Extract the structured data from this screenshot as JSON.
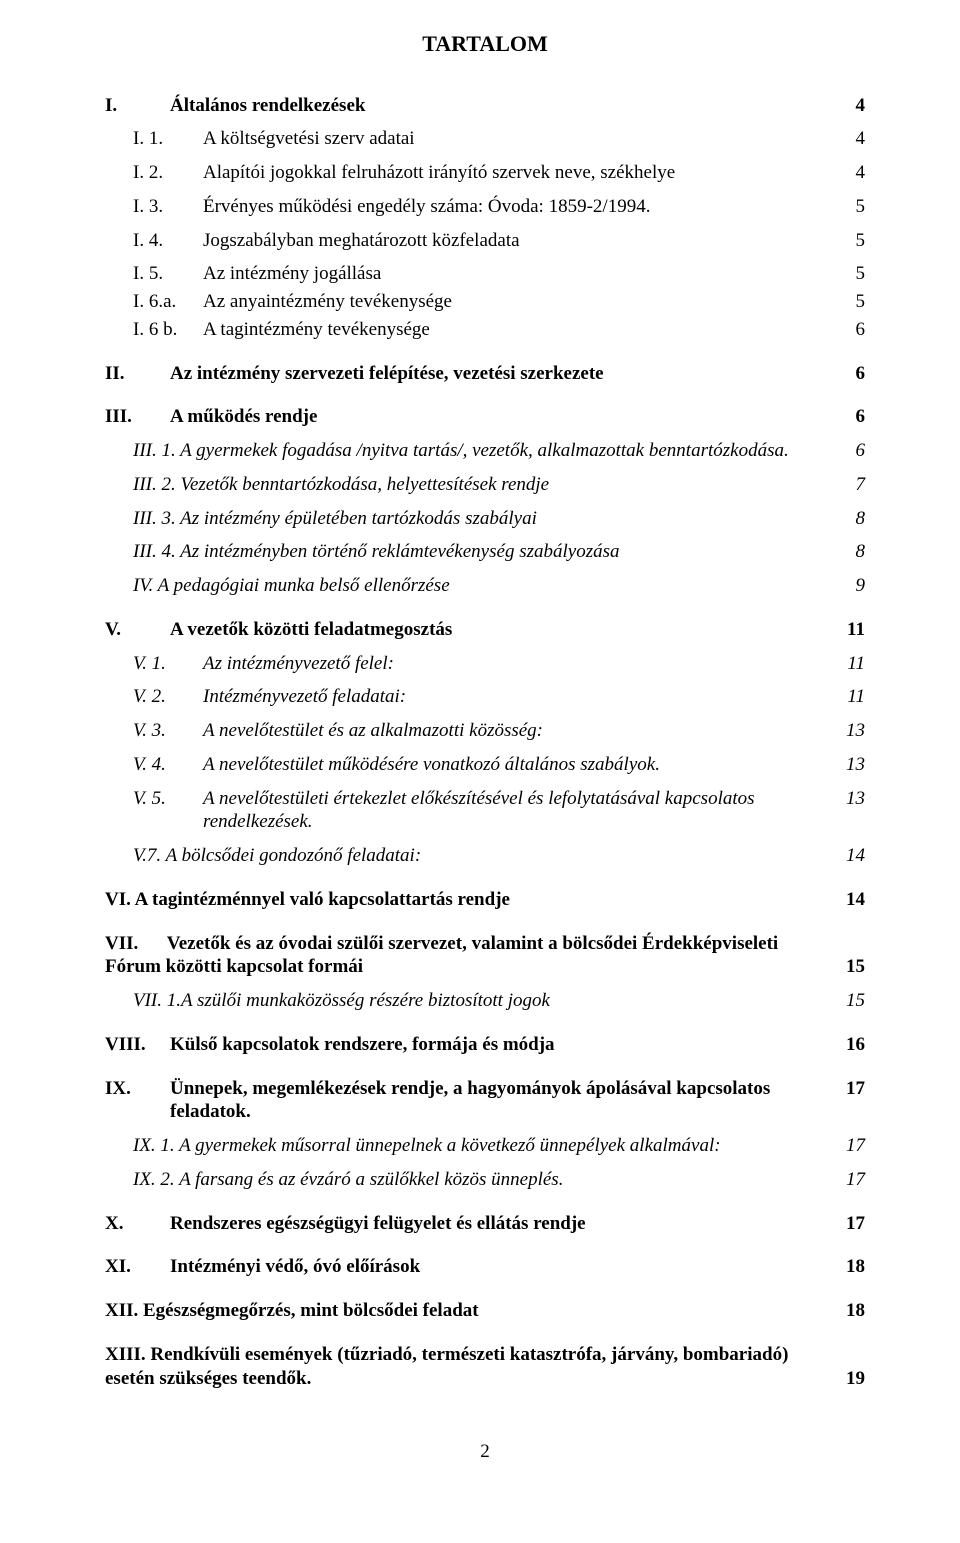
{
  "title": "TARTALOM",
  "page_number": "2",
  "toc": [
    {
      "num": "I.",
      "label": "Általános rendelkezések",
      "page": "4",
      "bold": true,
      "italic": false,
      "indent": 0,
      "gap": "lg"
    },
    {
      "num": "I. 1.",
      "label": "A költségvetési szerv adatai",
      "page": "4",
      "bold": false,
      "italic": false,
      "indent": 1,
      "gap": "sm"
    },
    {
      "num": "I. 2.",
      "label": "Alapítói jogokkal felruházott irányító szervek neve, székhelye",
      "page": "4",
      "bold": false,
      "italic": false,
      "indent": 1,
      "gap": "sm"
    },
    {
      "num": "I. 3.",
      "label": "Érvényes működési engedély száma:  Óvoda: 1859-2/1994.",
      "page": "5",
      "bold": false,
      "italic": false,
      "indent": 1,
      "gap": "sm"
    },
    {
      "num": "I. 4.",
      "label": "Jogszabályban meghatározott közfeladata",
      "page": "5",
      "bold": false,
      "italic": false,
      "indent": 1,
      "gap": "sm"
    },
    {
      "num": "I. 5.",
      "label": "Az intézmény jogállása",
      "page": "5",
      "bold": false,
      "italic": false,
      "indent": 1,
      "gap": "sm"
    },
    {
      "num": "I. 6.a.",
      "label": "Az anyaintézmény tevékenysége",
      "page": "5",
      "bold": false,
      "italic": false,
      "indent": 1,
      "gap": ""
    },
    {
      "num": "I. 6 b.",
      "label": "A tagintézmény tevékenysége",
      "page": "6",
      "bold": false,
      "italic": false,
      "indent": 1,
      "gap": ""
    },
    {
      "num": "II.",
      "label": "Az intézmény szervezeti felépítése, vezetési szerkezete",
      "page": "6",
      "bold": true,
      "italic": false,
      "indent": 0,
      "gap": "md"
    },
    {
      "num": "III.",
      "label": "A működés rendje",
      "page": "6",
      "bold": true,
      "italic": false,
      "indent": 0,
      "gap": "md"
    },
    {
      "num": "",
      "label": "III. 1. A gyermekek fogadása /nyitva tartás/, vezetők, alkalmazottak benntartózkodása.",
      "page": "6",
      "bold": false,
      "italic": true,
      "indent": 1,
      "gap": "sm",
      "nolabel": true
    },
    {
      "num": "",
      "label": "III. 2. Vezetők benntartózkodása, helyettesítések rendje",
      "page": "7",
      "bold": false,
      "italic": true,
      "indent": 1,
      "gap": "sm",
      "nolabel": true
    },
    {
      "num": "",
      "label": "III. 3. Az intézmény épületében tartózkodás szabályai",
      "page": "8",
      "bold": false,
      "italic": true,
      "indent": 1,
      "gap": "sm",
      "nolabel": true
    },
    {
      "num": "",
      "label": "III. 4. Az intézményben történő reklámtevékenység szabályozása",
      "page": "8",
      "bold": false,
      "italic": true,
      "indent": 1,
      "gap": "sm",
      "nolabel": true
    },
    {
      "num": "",
      "label": "IV. A pedagógiai munka belső ellenőrzése",
      "page": "9",
      "bold": false,
      "italic": true,
      "indent": 1,
      "gap": "sm",
      "nolabel": true
    },
    {
      "num": "V.",
      "label": "A vezetők közötti feladatmegosztás",
      "page": "11",
      "bold": true,
      "italic": false,
      "indent": 0,
      "gap": "md"
    },
    {
      "num": "V. 1.",
      "label": "Az intézményvezető felel:",
      "page": "11",
      "bold": false,
      "italic": true,
      "indent": 1,
      "gap": "sm"
    },
    {
      "num": "V. 2.",
      "label": "Intézményvezető feladatai:",
      "page": "11",
      "bold": false,
      "italic": true,
      "indent": 1,
      "gap": "sm"
    },
    {
      "num": "V. 3.",
      "label": " A nevelőtestület és az alkalmazotti közösség:",
      "page": "13",
      "bold": false,
      "italic": true,
      "indent": 1,
      "gap": "sm"
    },
    {
      "num": "V. 4.",
      "label": " A nevelőtestület működésére vonatkozó általános szabályok.",
      "page": "13",
      "bold": false,
      "italic": true,
      "indent": 1,
      "gap": "sm"
    },
    {
      "num": "V. 5.",
      "label": " A nevelőtestületi értekezlet előkészítésével és lefolytatásával kapcsolatos rendelkezések.",
      "page": "13",
      "bold": false,
      "italic": true,
      "indent": 1,
      "gap": "sm"
    },
    {
      "num": "",
      "label": "V.7. A bölcsődei gondozónő feladatai:",
      "page": "14",
      "bold": false,
      "italic": true,
      "indent": 1,
      "gap": "sm",
      "nolabel": true
    },
    {
      "num": "",
      "label": "VI. A tagintézménnyel való kapcsolattartás rendje",
      "page": "14",
      "bold": true,
      "italic": false,
      "indent": 0,
      "gap": "md",
      "nolabel": true
    },
    {
      "num": "VII.",
      "label": "Vezetők és az óvodai szülői szervezet, valamint a bölcsődei Érdekképviseleti  Fórum közötti kapcsolat formái",
      "page": "15",
      "bold": true,
      "italic": false,
      "indent": 0,
      "gap": "md",
      "wrap": true
    },
    {
      "num": "",
      "label": "VII. 1.A szülői munkaközösség részére biztosított jogok",
      "page": "15",
      "bold": false,
      "italic": true,
      "indent": 1,
      "gap": "sm",
      "nolabel": true
    },
    {
      "num": "VIII.",
      "label": "Külső kapcsolatok rendszere, formája és módja",
      "page": "16",
      "bold": true,
      "italic": false,
      "indent": 0,
      "gap": "md"
    },
    {
      "num": "IX.",
      "label": "Ünnepek, megemlékezések rendje, a hagyományok ápolásával kapcsolatos feladatok.",
      "page": "17",
      "bold": true,
      "italic": false,
      "indent": 0,
      "gap": "md"
    },
    {
      "num": "",
      "label": "IX. 1. A gyermekek műsorral ünnepelnek a következő ünnepélyek alkalmával:",
      "page": "17",
      "bold": false,
      "italic": true,
      "indent": 1,
      "gap": "sm",
      "nolabel": true
    },
    {
      "num": "",
      "label": "IX. 2. A farsang és az évzáró a szülőkkel közös ünneplés.",
      "page": "17",
      "bold": false,
      "italic": true,
      "indent": 1,
      "gap": "sm",
      "nolabel": true
    },
    {
      "num": "X.",
      "label": "Rendszeres egészségügyi felügyelet és ellátás rendje",
      "page": "17",
      "bold": true,
      "italic": false,
      "indent": 0,
      "gap": "md"
    },
    {
      "num": "XI.",
      "label": "Intézményi védő, óvó előírások",
      "page": "18",
      "bold": true,
      "italic": false,
      "indent": 0,
      "gap": "md"
    },
    {
      "num": "",
      "label": "XII. Egészségmegőrzés, mint bölcsődei feladat",
      "page": "18",
      "bold": true,
      "italic": false,
      "indent": 0,
      "gap": "md",
      "nolabel": true
    },
    {
      "num": "",
      "label": "XIII. Rendkívüli események (tűzriadó, természeti katasztrófa, járvány, bombariadó) esetén szükséges teendők.",
      "page": "19",
      "bold": true,
      "italic": false,
      "indent": 0,
      "gap": "md",
      "nolabel": true,
      "wrap": true
    }
  ]
}
